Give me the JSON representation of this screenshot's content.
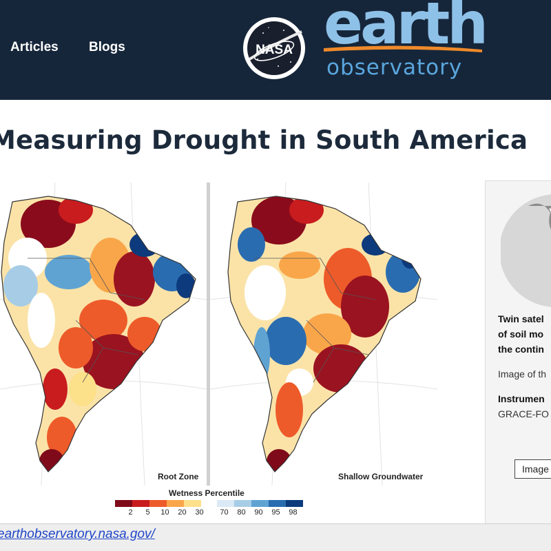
{
  "header": {
    "nav": [
      {
        "label": "Articles"
      },
      {
        "label": "Blogs"
      }
    ],
    "nasa_logo_text": "NASA",
    "brand_word": "earth",
    "brand_sub": "observatory",
    "colors": {
      "background": "#16263a",
      "brand_light": "#8ec1e8",
      "brand_blue": "#5aa6de",
      "swoosh": "#f08a2a"
    }
  },
  "page": {
    "title": "Measuring Drought in South America"
  },
  "figure": {
    "map_left_label": "Root Zone",
    "map_right_label": "Shallow Groundwater",
    "legend": {
      "title": "Wetness Percentile",
      "dry_ticks": [
        "2",
        "5",
        "10",
        "20",
        "30"
      ],
      "wet_ticks": [
        "70",
        "80",
        "90",
        "95",
        "98"
      ],
      "dry_colors": [
        "#7f0a1a",
        "#c91c1e",
        "#ee5b2a",
        "#f9a64a",
        "#fde08a"
      ],
      "wet_colors": [
        "#dbe9f6",
        "#a7cde6",
        "#5fa3d3",
        "#2a6cb0",
        "#0c3a7c"
      ]
    }
  },
  "side_card": {
    "caption_lines": [
      "Twin satel",
      "of soil mo",
      "the contin"
    ],
    "credit": "Image of th",
    "instrument_label": "Instrumen",
    "instrument_value": "GRACE-FO",
    "image_button": "Image"
  },
  "status_bar": {
    "url": "earthobservatory.nasa.gov/"
  }
}
